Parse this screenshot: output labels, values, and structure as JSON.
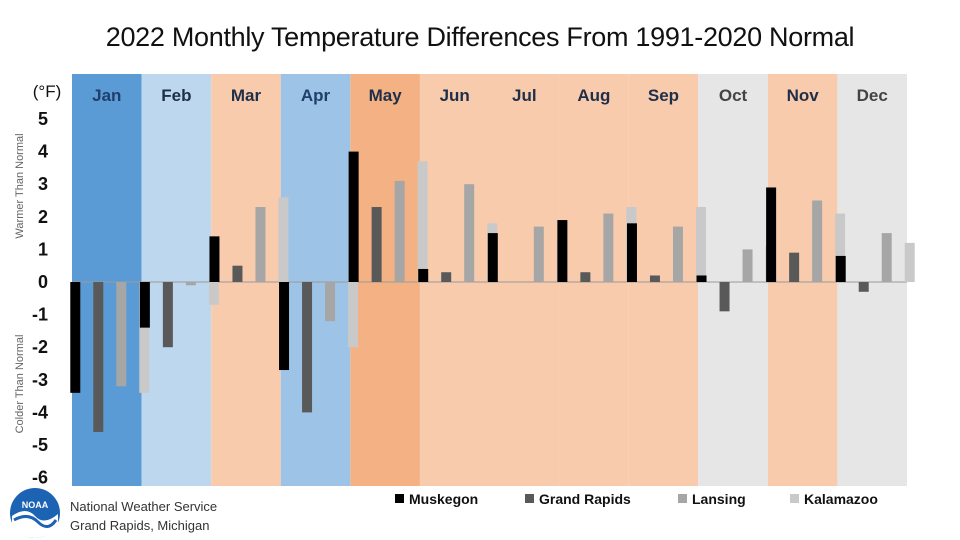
{
  "chart_data": {
    "type": "bar",
    "title": "2022 Monthly Temperature Differences From 1991-2020 Normal",
    "unit_label": "(°F)",
    "upper_side_label": "Warmer Than Normal",
    "lower_side_label": "Colder Than Normal",
    "ylim": [
      -6,
      5
    ],
    "yticks": [
      "5",
      "4",
      "3",
      "2",
      "1",
      "0",
      "-1",
      "-2",
      "-3",
      "-4",
      "-5",
      "-6"
    ],
    "categories": [
      "Jan",
      "Feb",
      "Mar",
      "Apr",
      "May",
      "Jun",
      "Jul",
      "Aug",
      "Sep",
      "Oct",
      "Nov",
      "Dec"
    ],
    "category_colors": [
      "#5b9bd5",
      "#bdd7ee",
      "#f8cbad",
      "#9dc3e6",
      "#f4b183",
      "#f8cbad",
      "#f8cbad",
      "#f8cbad",
      "#f8cbad",
      "#e7e6e6",
      "#f8cbad",
      "#e7e6e6"
    ],
    "series": [
      {
        "name": "Muskegon",
        "color": "#000000",
        "values": [
          -3.4,
          -1.4,
          1.4,
          -2.7,
          4.0,
          0.4,
          1.5,
          1.9,
          1.8,
          0.2,
          2.9,
          0.8
        ]
      },
      {
        "name": "Grand Rapids",
        "color": "#595959",
        "values": [
          -4.6,
          -2.0,
          0.5,
          -4.0,
          2.3,
          0.3,
          0.0,
          0.3,
          0.2,
          -0.9,
          0.9,
          -0.3
        ]
      },
      {
        "name": "Lansing",
        "color": "#a6a6a6",
        "values": [
          -3.2,
          -0.1,
          2.3,
          -1.2,
          3.1,
          3.0,
          1.7,
          2.1,
          1.7,
          1.0,
          2.5,
          1.5
        ]
      },
      {
        "name": "Kalamazoo",
        "color": "#c9c9c9",
        "values": [
          -3.4,
          -0.7,
          2.6,
          -2.0,
          3.7,
          1.8,
          1.3,
          2.3,
          2.3,
          1.1,
          2.1,
          1.2
        ]
      }
    ],
    "legend_position": "bottom-right",
    "grid": false
  },
  "footer": {
    "org_name": "National Weather Service",
    "org_location": "Grand Rapids, Michigan",
    "logo_text": "NOAA"
  }
}
